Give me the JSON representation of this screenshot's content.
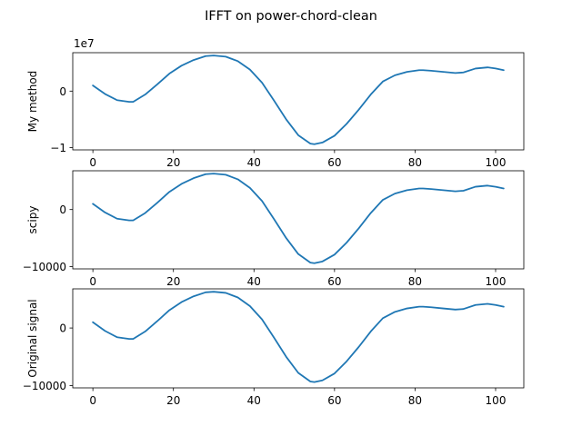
{
  "figure": {
    "title": "IFFT on power-chord-clean"
  },
  "colors": {
    "line": "#1f77b4",
    "axes": "#000000",
    "background": "#ffffff"
  },
  "chart_data": [
    {
      "type": "line",
      "title": "",
      "ylabel": "My method",
      "xlabel": "",
      "offset_text": "1e7",
      "x_ticks": [
        0,
        20,
        40,
        60,
        80,
        100
      ],
      "y_ticks": [
        -1,
        0
      ],
      "xlim": [
        -5,
        107
      ],
      "ylim": [
        -1.04,
        0.68
      ],
      "grid": false,
      "series": [
        {
          "x": [
            0,
            3,
            6,
            9,
            10,
            13,
            16,
            19,
            22,
            25,
            28,
            30,
            33,
            36,
            39,
            42,
            45,
            48,
            51,
            54,
            55,
            57,
            60,
            63,
            66,
            69,
            72,
            75,
            78,
            81,
            82,
            84,
            87,
            90,
            92,
            95,
            98,
            100,
            102
          ],
          "y": [
            0.1,
            -0.05,
            -0.16,
            -0.19,
            -0.19,
            -0.06,
            0.12,
            0.31,
            0.45,
            0.55,
            0.62,
            0.63,
            0.61,
            0.53,
            0.38,
            0.15,
            -0.17,
            -0.5,
            -0.78,
            -0.93,
            -0.94,
            -0.91,
            -0.79,
            -0.58,
            -0.33,
            -0.06,
            0.17,
            0.28,
            0.34,
            0.37,
            0.37,
            0.36,
            0.34,
            0.32,
            0.33,
            0.4,
            0.42,
            0.4,
            0.37
          ]
        }
      ]
    },
    {
      "type": "line",
      "title": "",
      "ylabel": "scipy",
      "xlabel": "",
      "x_ticks": [
        0,
        20,
        40,
        60,
        80,
        100
      ],
      "y_ticks": [
        -10000,
        0
      ],
      "xlim": [
        -5,
        107
      ],
      "ylim": [
        -10400,
        6800
      ],
      "grid": false,
      "series": [
        {
          "x": [
            0,
            3,
            6,
            9,
            10,
            13,
            16,
            19,
            22,
            25,
            28,
            30,
            33,
            36,
            39,
            42,
            45,
            48,
            51,
            54,
            55,
            57,
            60,
            63,
            66,
            69,
            72,
            75,
            78,
            81,
            82,
            84,
            87,
            90,
            92,
            95,
            98,
            100,
            102
          ],
          "y": [
            1000,
            -500,
            -1600,
            -1900,
            -1900,
            -600,
            1200,
            3100,
            4500,
            5500,
            6200,
            6300,
            6100,
            5300,
            3800,
            1500,
            -1700,
            -5000,
            -7800,
            -9300,
            -9400,
            -9100,
            -7900,
            -5800,
            -3300,
            -600,
            1700,
            2800,
            3400,
            3700,
            3700,
            3600,
            3400,
            3200,
            3300,
            4000,
            4200,
            4000,
            3700
          ]
        }
      ]
    },
    {
      "type": "line",
      "title": "",
      "ylabel": "Original signal",
      "xlabel": "",
      "x_ticks": [
        0,
        20,
        40,
        60,
        80,
        100
      ],
      "y_ticks": [
        -10000,
        0
      ],
      "xlim": [
        -5,
        107
      ],
      "ylim": [
        -10400,
        6800
      ],
      "grid": false,
      "series": [
        {
          "x": [
            0,
            3,
            6,
            9,
            10,
            13,
            16,
            19,
            22,
            25,
            28,
            30,
            33,
            36,
            39,
            42,
            45,
            48,
            51,
            54,
            55,
            57,
            60,
            63,
            66,
            69,
            72,
            75,
            78,
            81,
            82,
            84,
            87,
            90,
            92,
            95,
            98,
            100,
            102
          ],
          "y": [
            1000,
            -500,
            -1600,
            -1900,
            -1900,
            -600,
            1200,
            3100,
            4500,
            5500,
            6200,
            6300,
            6100,
            5300,
            3800,
            1500,
            -1700,
            -5000,
            -7800,
            -9300,
            -9400,
            -9100,
            -7900,
            -5800,
            -3300,
            -600,
            1700,
            2800,
            3400,
            3700,
            3700,
            3600,
            3400,
            3200,
            3300,
            4000,
            4200,
            4000,
            3700
          ]
        }
      ]
    }
  ]
}
